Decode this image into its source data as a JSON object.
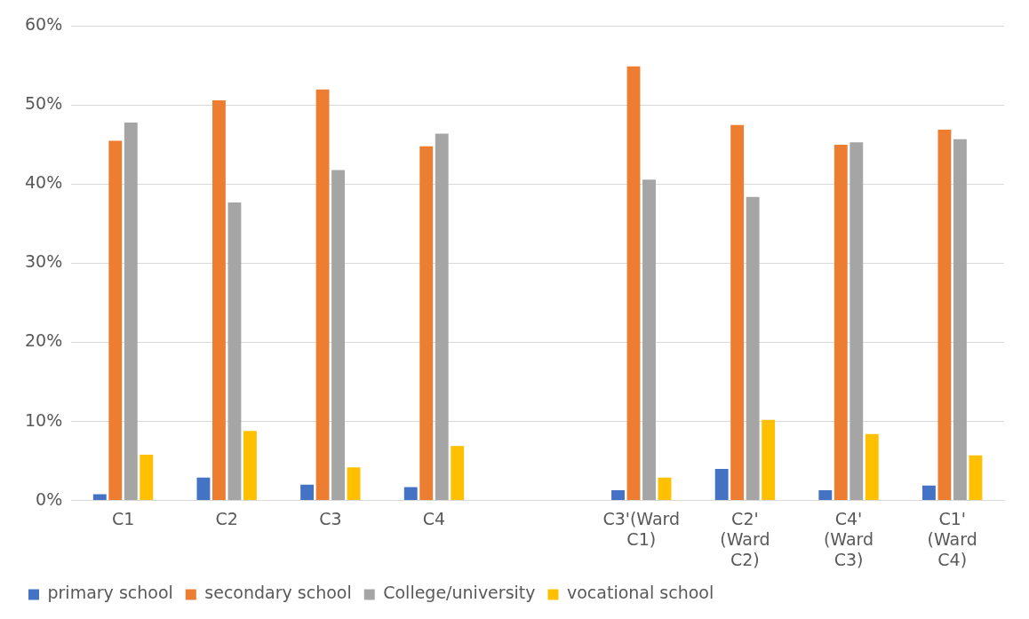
{
  "chart_data": {
    "type": "bar",
    "categories": [
      "C1",
      "C2",
      "C3",
      "C4",
      null,
      "C3'(Ward C1)",
      "C2' (Ward C2)",
      "C4' (Ward C3)",
      "C1' (Ward C4)"
    ],
    "series": [
      {
        "name": "primary school",
        "color": "#4472c4",
        "values": [
          0.8,
          2.9,
          2.0,
          1.7,
          null,
          1.3,
          4.0,
          1.3,
          1.9
        ]
      },
      {
        "name": "secondary school",
        "color": "#ed7d31",
        "values": [
          45.5,
          50.6,
          52.0,
          44.8,
          null,
          54.9,
          47.5,
          45.0,
          46.9
        ]
      },
      {
        "name": "College/university",
        "color": "#a5a5a5",
        "values": [
          47.8,
          37.7,
          41.8,
          46.4,
          null,
          40.6,
          38.4,
          45.3,
          45.7
        ]
      },
      {
        "name": "vocational school",
        "color": "#ffc000",
        "values": [
          5.8,
          8.8,
          4.2,
          6.9,
          null,
          2.9,
          10.2,
          8.4,
          5.7
        ]
      }
    ],
    "ylim": [
      0,
      60
    ],
    "yticks": [
      {
        "value": 0,
        "label": "0%"
      },
      {
        "value": 10,
        "label": "10%"
      },
      {
        "value": 20,
        "label": "20%"
      },
      {
        "value": 30,
        "label": "30%"
      },
      {
        "value": 40,
        "label": "40%"
      },
      {
        "value": 50,
        "label": "50%"
      },
      {
        "value": 60,
        "label": "60%"
      }
    ],
    "grid": "y",
    "legend": "bottom"
  }
}
